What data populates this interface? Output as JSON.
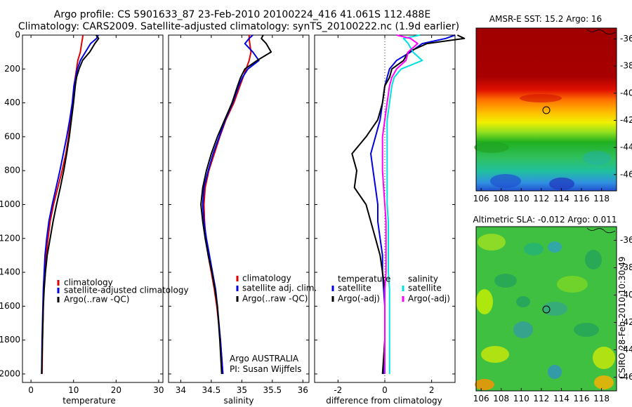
{
  "title": {
    "line1": "Argo profile: CS 5901633_87 23-Feb-2010 20100224_416 41.061S 112.488E",
    "line2": "Climatology: CARS2009. Satellite-adjusted climatology: synTS_20100222.nc (1.9d earlier)"
  },
  "credit": "CSIRO 28-Feb-2010 10:30:49",
  "colors": {
    "climatology": "#e00000",
    "satellite": "#0000e0",
    "argo": "#000000",
    "salinity_satellite": "#00e0e0",
    "salinity_argo": "#ff00ff"
  },
  "chart_data": [
    {
      "type": "line",
      "id": "temperature",
      "xlabel": "temperature",
      "ylabel": "",
      "xlim": [
        -2,
        31
      ],
      "ylim": [
        2050,
        0
      ],
      "xticks": [
        "0",
        "10",
        "20",
        "30"
      ],
      "yticks": [
        "0",
        "200",
        "400",
        "600",
        "800",
        "1000",
        "1200",
        "1400",
        "1600",
        "1800",
        "2000"
      ],
      "legend": [
        "climatology",
        "satellite-adjusted climatology",
        "Argo(..raw -QC)"
      ],
      "series": [
        {
          "name": "climatology",
          "color": "#e00000",
          "x": [
            12.2,
            12.1,
            11.9,
            11.6,
            11.0,
            10.7,
            10.4,
            10.1,
            9.8,
            9.3,
            8.8,
            8.2,
            7.3,
            6.3,
            5.3,
            4.5,
            4.0,
            3.6,
            3.3,
            3.0,
            2.9,
            2.7,
            2.6
          ],
          "y": [
            0,
            20,
            50,
            100,
            150,
            200,
            250,
            300,
            400,
            500,
            600,
            700,
            800,
            900,
            1000,
            1100,
            1200,
            1300,
            1400,
            1500,
            1600,
            1800,
            2000
          ]
        },
        {
          "name": "satellite-adjusted climatology",
          "color": "#0000e0",
          "x": [
            15.8,
            15.4,
            14.0,
            12.8,
            11.6,
            10.9,
            10.5,
            10.1,
            9.7,
            9.1,
            8.4,
            7.6,
            6.8,
            5.9,
            5.0,
            4.2,
            3.7,
            3.3,
            3.1,
            2.9,
            2.8,
            2.6,
            2.5
          ],
          "y": [
            0,
            20,
            50,
            100,
            150,
            200,
            250,
            300,
            400,
            500,
            600,
            700,
            800,
            900,
            1000,
            1100,
            1200,
            1300,
            1400,
            1500,
            1600,
            1800,
            2000
          ]
        },
        {
          "name": "Argo(..raw -QC)",
          "color": "#000000",
          "x": [
            15.3,
            15.9,
            15.0,
            13.8,
            12.1,
            11.3,
            10.7,
            10.4,
            10.0,
            9.5,
            9.0,
            8.4,
            7.7,
            6.9,
            6.0,
            5.2,
            4.5,
            3.8,
            3.4,
            3.1,
            2.9,
            2.7,
            2.5
          ],
          "y": [
            0,
            20,
            50,
            100,
            150,
            200,
            250,
            300,
            400,
            500,
            600,
            700,
            800,
            900,
            1000,
            1100,
            1200,
            1300,
            1400,
            1500,
            1600,
            1800,
            2000
          ]
        }
      ]
    },
    {
      "type": "line",
      "id": "salinity",
      "xlabel": "salinity",
      "xlim": [
        33.8,
        36.1
      ],
      "ylim": [
        2050,
        0
      ],
      "xticks": [
        "34",
        "34.5",
        "35",
        "35.5",
        "36"
      ],
      "legend": [
        "climatology",
        "satellite adj. clim.",
        "Argo(..raw -QC)"
      ],
      "annotation": [
        "Argo AUSTRALIA",
        "PI: Susan Wijffels"
      ],
      "series": [
        {
          "name": "climatology",
          "color": "#e00000",
          "x": [
            35.12,
            35.12,
            35.13,
            35.15,
            35.12,
            35.07,
            35.02,
            34.97,
            34.87,
            34.74,
            34.64,
            34.55,
            34.46,
            34.4,
            34.38,
            34.39,
            34.41,
            34.45,
            34.5,
            34.55,
            34.59,
            34.65,
            34.69
          ],
          "y": [
            0,
            20,
            50,
            100,
            150,
            200,
            250,
            300,
            400,
            500,
            600,
            700,
            800,
            900,
            1000,
            1100,
            1200,
            1300,
            1400,
            1500,
            1600,
            1800,
            2000
          ]
        },
        {
          "name": "satellite adj. clim.",
          "color": "#0000e0",
          "x": [
            35.18,
            35.12,
            35.05,
            35.18,
            35.28,
            35.1,
            35.01,
            34.95,
            34.85,
            34.73,
            34.63,
            34.53,
            34.45,
            34.38,
            34.36,
            34.38,
            34.42,
            34.47,
            34.52,
            34.57,
            34.6,
            34.65,
            34.69
          ],
          "y": [
            0,
            20,
            50,
            100,
            150,
            200,
            250,
            300,
            400,
            500,
            600,
            700,
            800,
            900,
            1000,
            1100,
            1200,
            1300,
            1400,
            1500,
            1600,
            1800,
            2000
          ]
        },
        {
          "name": "Argo(..raw -QC)",
          "color": "#000000",
          "x": [
            35.35,
            35.32,
            35.4,
            35.48,
            35.25,
            35.05,
            34.98,
            34.93,
            34.84,
            34.72,
            34.6,
            34.5,
            34.42,
            34.36,
            34.33,
            34.36,
            34.4,
            34.45,
            34.51,
            34.56,
            34.6,
            34.64,
            34.67
          ],
          "y": [
            0,
            20,
            50,
            100,
            150,
            200,
            250,
            300,
            400,
            500,
            600,
            700,
            800,
            900,
            1000,
            1100,
            1200,
            1300,
            1400,
            1500,
            1600,
            1800,
            2000
          ]
        }
      ]
    },
    {
      "type": "line",
      "id": "difference",
      "xlabel": "difference from climatology",
      "xlim": [
        -3,
        3
      ],
      "ylim": [
        2050,
        0
      ],
      "xticks": [
        "-2",
        "0",
        "2"
      ],
      "legend_temperature": [
        "temperature",
        "satellite",
        "Argo(-adj)"
      ],
      "legend_salinity": [
        "salinity",
        "satellite",
        "Argo(-adj)"
      ],
      "series": [
        {
          "name": "temperature satellite",
          "color": "#0000e0",
          "x": [
            3.0,
            2.6,
            1.6,
            1.1,
            0.5,
            0.2,
            0.1,
            0.0,
            -0.1,
            -0.2,
            -0.4,
            -0.6,
            -0.5,
            -0.4,
            -0.3,
            -0.3,
            -0.2,
            -0.1,
            -0.1,
            -0.05,
            0.0,
            0.0,
            -0.05
          ],
          "y": [
            0,
            20,
            50,
            100,
            150,
            200,
            250,
            300,
            400,
            500,
            600,
            700,
            800,
            900,
            1000,
            1100,
            1200,
            1300,
            1400,
            1500,
            1600,
            1800,
            2000
          ]
        },
        {
          "name": "temperature Argo(-adj)",
          "color": "#000000",
          "x": [
            3.1,
            3.4,
            1.8,
            1.0,
            0.8,
            0.3,
            0.2,
            0.0,
            -0.1,
            -0.3,
            -0.8,
            -1.4,
            -1.2,
            -1.3,
            -0.8,
            -0.6,
            -0.4,
            -0.2,
            -0.1,
            0.0,
            0.0,
            0.0,
            -0.1
          ],
          "y": [
            0,
            20,
            50,
            100,
            150,
            200,
            250,
            300,
            400,
            500,
            600,
            700,
            800,
            900,
            1000,
            1100,
            1200,
            1300,
            1400,
            1500,
            1600,
            1800,
            2000
          ]
        },
        {
          "name": "salinity satellite",
          "color": "#00e0e0",
          "x": [
            1.5,
            0.8,
            1.0,
            1.2,
            1.6,
            0.7,
            0.4,
            0.3,
            0.2,
            0.1,
            0.1,
            0.1,
            0.1,
            0.1,
            0.1,
            0.15,
            0.15,
            0.15,
            0.15,
            0.2,
            0.2,
            0.2,
            0.2
          ],
          "y": [
            0,
            20,
            50,
            100,
            150,
            200,
            250,
            300,
            400,
            500,
            600,
            700,
            800,
            900,
            1000,
            1100,
            1200,
            1300,
            1400,
            1500,
            1600,
            1800,
            2000
          ]
        },
        {
          "name": "salinity Argo(-adj)",
          "color": "#ff00ff",
          "x": [
            0.5,
            1.1,
            1.4,
            1.0,
            0.9,
            0.5,
            0.3,
            0.2,
            0.1,
            0.0,
            -0.1,
            -0.1,
            -0.1,
            -0.05,
            0.0,
            0.05,
            0.05,
            0.05,
            0.05,
            0.0,
            0.0,
            0.0,
            0.0
          ],
          "y": [
            0,
            20,
            50,
            100,
            150,
            200,
            250,
            300,
            400,
            500,
            600,
            700,
            800,
            900,
            1000,
            1100,
            1200,
            1300,
            1400,
            1500,
            1600,
            1800,
            2000
          ]
        }
      ]
    },
    {
      "type": "heatmap",
      "id": "sst_map",
      "title": "AMSR-E SST: 15.2 Argo: 16",
      "xlim": [
        105.5,
        119.5
      ],
      "ylim": [
        -47.2,
        -35.2
      ],
      "xticks": [
        "106",
        "108",
        "110",
        "112",
        "114",
        "116",
        "118"
      ],
      "yticks": [
        "-36",
        "-38",
        "-40",
        "-42",
        "-44",
        "-46"
      ],
      "marker": {
        "x": 112.488,
        "y": -41.061
      }
    },
    {
      "type": "heatmap",
      "id": "sla_map",
      "title": "Altimetric SLA: -0.012 Argo: 0.011",
      "xlim": [
        105.5,
        119.5
      ],
      "ylim": [
        -47.0,
        -35.0
      ],
      "xticks": [
        "106",
        "108",
        "110",
        "112",
        "114",
        "116",
        "118"
      ],
      "yticks": [
        "-36",
        "-38",
        "-40",
        "-42",
        "-44",
        "-46"
      ],
      "marker": {
        "x": 112.488,
        "y": -41.061
      }
    }
  ]
}
